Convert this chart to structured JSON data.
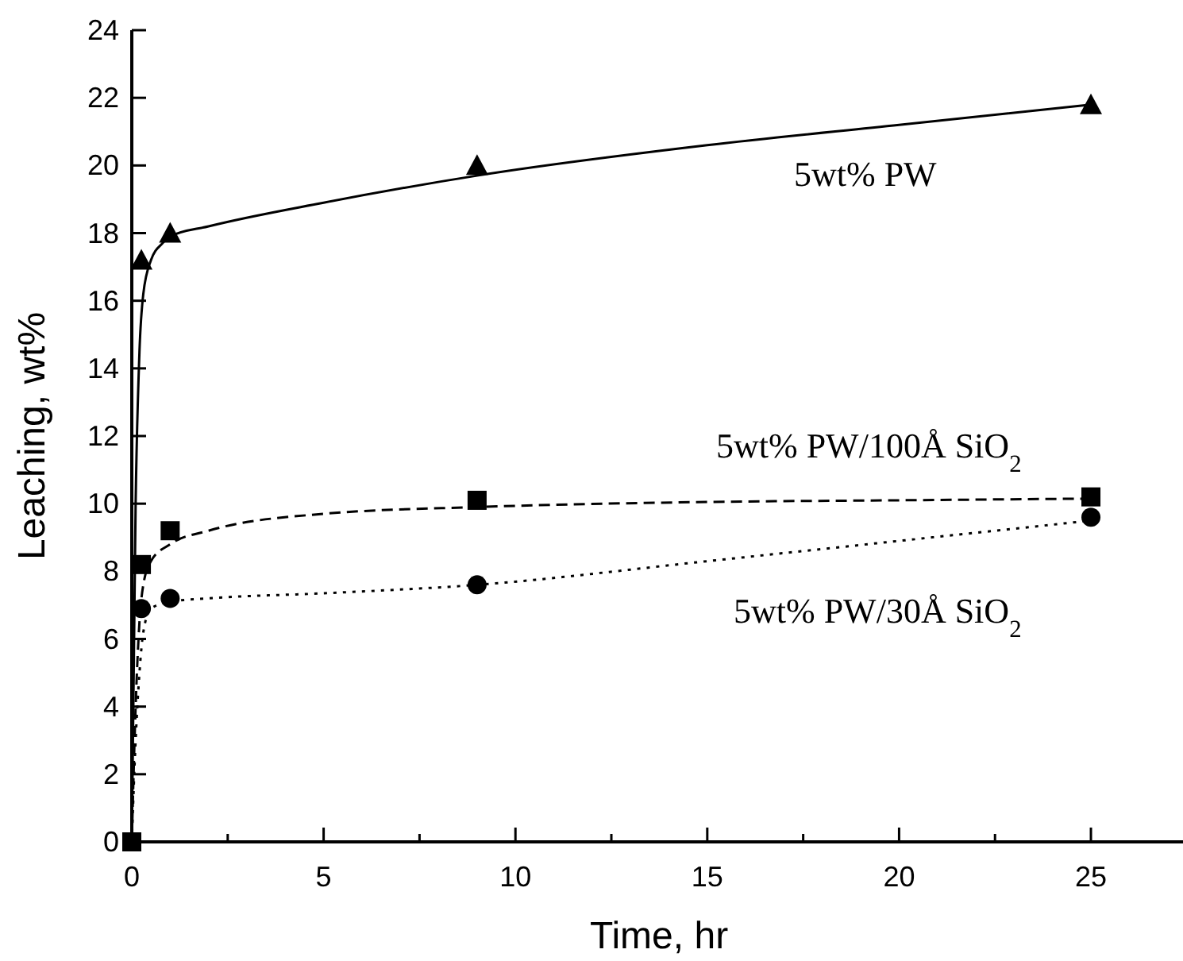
{
  "chart_data": {
    "type": "line",
    "xlabel": "Time, hr",
    "ylabel": "Leaching, wt%",
    "xlim": [
      0,
      27.4
    ],
    "xticks": [
      0,
      {
        "value": 2.5,
        "label": null
      },
      5,
      {
        "value": 7.5,
        "label": null
      },
      10,
      {
        "value": 12.5,
        "label": null
      },
      15,
      {
        "value": 17.5,
        "label": null
      },
      20,
      {
        "value": 22.5,
        "label": null
      },
      25
    ],
    "ylim": [
      0,
      24
    ],
    "yticks": [
      0,
      2,
      4,
      6,
      8,
      10,
      12,
      14,
      16,
      18,
      20,
      22,
      24
    ],
    "grid": false,
    "series": [
      {
        "type": "scatter",
        "marker": "triangle",
        "color": "#000000",
        "x": [
          0.25,
          1,
          9,
          25
        ],
        "values": [
          17.2,
          18,
          20,
          21.8
        ]
      },
      {
        "type": "scatter",
        "marker": "square",
        "color": "#000000",
        "x": [
          0,
          0.25,
          1,
          9,
          25
        ],
        "values": [
          0,
          8.2,
          9.2,
          10.1,
          10.2
        ]
      },
      {
        "type": "scatter",
        "marker": "circle",
        "color": "#000000",
        "x": [
          0.25,
          1,
          9,
          25
        ],
        "values": [
          6.9,
          7.2,
          7.6,
          9.6
        ]
      },
      {
        "line_style": "solid",
        "marker": "none",
        "color": "#000000",
        "x": [
          0,
          0.1,
          0.2,
          0.3,
          0.5,
          0.8,
          1,
          2,
          5,
          9,
          15,
          20,
          25
        ],
        "values": [
          0,
          10,
          14.5,
          16.2,
          17.2,
          17.7,
          17.9,
          18.2,
          18.9,
          19.7,
          20.6,
          21.2,
          21.8
        ]
      },
      {
        "line_style": "dashed",
        "marker": "none",
        "color": "#000000",
        "x": [
          0,
          0.1,
          0.2,
          0.3,
          0.5,
          1,
          2,
          5,
          9,
          15,
          20,
          25
        ],
        "values": [
          0,
          4,
          6.5,
          7.6,
          8.3,
          8.8,
          9.2,
          9.7,
          9.9,
          10.05,
          10.1,
          10.15
        ]
      },
      {
        "line_style": "dotted",
        "marker": "none",
        "color": "#000000",
        "x": [
          0,
          0.1,
          0.2,
          0.3,
          0.5,
          1,
          2,
          5,
          9,
          15,
          20,
          25
        ],
        "values": [
          0,
          3,
          5,
          6.2,
          6.9,
          7.1,
          7.2,
          7.35,
          7.6,
          8.3,
          8.9,
          9.5
        ]
      }
    ],
    "annotations": [
      "5wt% PW",
      "5wt% PW/100Å SiO$_{2}$",
      "5wt% PW/30Å SiO$_{2}$"
    ]
  }
}
